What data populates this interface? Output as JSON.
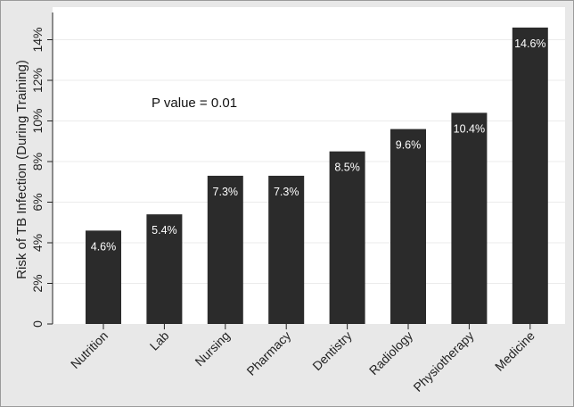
{
  "chart_data": {
    "type": "bar",
    "title": "",
    "xlabel": "",
    "ylabel": "Risk of TB Infection (During Training)",
    "categories": [
      "Nutrition",
      "Lab",
      "Nursing",
      "Pharmacy",
      "Dentistry",
      "Radiology",
      "Physiotherapy",
      "Medicine"
    ],
    "values": [
      4.6,
      5.4,
      7.3,
      7.3,
      8.5,
      9.6,
      10.4,
      14.6
    ],
    "value_labels": [
      "4.6%",
      "5.4%",
      "7.3%",
      "7.3%",
      "8.5%",
      "9.6%",
      "10.4%",
      "14.6%"
    ],
    "ylim": [
      0,
      15
    ],
    "yticks": [
      0,
      2,
      4,
      6,
      8,
      10,
      12,
      14
    ],
    "ytick_labels": [
      "0",
      "2%",
      "4%",
      "6%",
      "8%",
      "10%",
      "12%",
      "14%"
    ],
    "annotation": "P value = 0.01",
    "grid": true,
    "legend": "none",
    "colors": {
      "bar": "#2b2b2b",
      "plot_bg": "#ffffff",
      "outer_bg": "#e8e8e8",
      "grid": "#ebebeb"
    }
  }
}
